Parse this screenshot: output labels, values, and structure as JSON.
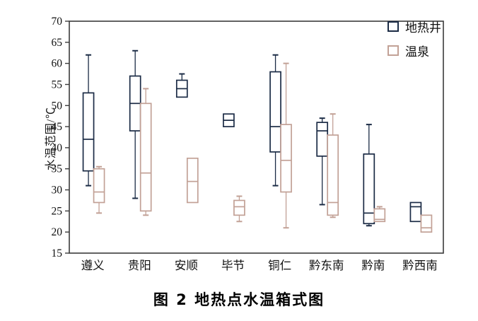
{
  "figure": {
    "caption": "图 2  地热点水温箱式图"
  },
  "chart_data": {
    "type": "boxplot",
    "title": "图 2 地热点水温箱式图",
    "ylabel": "水温范围/℃",
    "xlabel": "",
    "ylim": [
      15,
      70
    ],
    "yticks": [
      15,
      20,
      25,
      30,
      35,
      40,
      45,
      50,
      55,
      60,
      65,
      70
    ],
    "grid": false,
    "legend_position": "top-right-inside",
    "frame_color": "#3b3b3b",
    "categories": [
      "遵义",
      "贵阳",
      "安顺",
      "毕节",
      "铜仁",
      "黔东南",
      "黔南",
      "黔西南"
    ],
    "series": [
      {
        "name": "地热井",
        "color": "#1b2b45",
        "boxes": [
          {
            "low": 31,
            "q1": 34.5,
            "median": 42,
            "q3": 53,
            "high": 62
          },
          {
            "low": 28,
            "q1": 44,
            "median": 50.5,
            "q3": 57,
            "high": 63
          },
          {
            "low": 52,
            "q1": 52,
            "median": 54,
            "q3": 56,
            "high": 57.5
          },
          {
            "low": 45,
            "q1": 45,
            "median": 46.5,
            "q3": 48,
            "high": 48
          },
          {
            "low": 31,
            "q1": 39,
            "median": 45,
            "q3": 58,
            "high": 62
          },
          {
            "low": 26.5,
            "q1": 38,
            "median": 44,
            "q3": 46,
            "high": 47
          },
          {
            "low": 21.5,
            "q1": 22,
            "median": 24.5,
            "q3": 38.5,
            "high": 45.5
          },
          {
            "low": 22.5,
            "q1": 22.5,
            "median": 26,
            "q3": 27,
            "high": 27
          }
        ]
      },
      {
        "name": "温泉",
        "color": "#c2a196",
        "boxes": [
          {
            "low": 24.5,
            "q1": 27,
            "median": 29.5,
            "q3": 35,
            "high": 35.5
          },
          {
            "low": 24,
            "q1": 25,
            "median": 34,
            "q3": 50.5,
            "high": 54
          },
          {
            "low": 27,
            "q1": 27,
            "median": 32,
            "q3": 37.5,
            "high": 37.5
          },
          {
            "low": 22.5,
            "q1": 24,
            "median": 26,
            "q3": 27.5,
            "high": 28.5
          },
          {
            "low": 21,
            "q1": 29.5,
            "median": 37,
            "q3": 45.5,
            "high": 60
          },
          {
            "low": 23.5,
            "q1": 24,
            "median": 27,
            "q3": 43,
            "high": 48
          },
          {
            "low": 22.5,
            "q1": 22.5,
            "median": 23,
            "q3": 25.5,
            "high": 26
          },
          {
            "low": 20,
            "q1": 20,
            "median": 21,
            "q3": 24,
            "high": 24
          }
        ]
      }
    ]
  }
}
